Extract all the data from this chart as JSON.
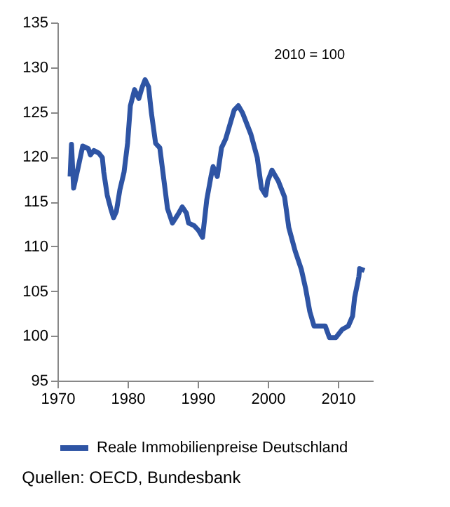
{
  "chart_data": {
    "type": "line",
    "x": [
      1971.8,
      1972.0,
      1972.3,
      1972.9,
      1973.6,
      1974.4,
      1974.7,
      1975.2,
      1975.9,
      1976.4,
      1976.6,
      1977.1,
      1977.6,
      1978.0,
      1978.4,
      1978.9,
      1979.5,
      1980.0,
      1980.4,
      1981.0,
      1981.6,
      1982.1,
      1982.5,
      1983.0,
      1983.4,
      1984.0,
      1984.6,
      1985.2,
      1985.7,
      1986.4,
      1987.3,
      1987.8,
      1988.4,
      1988.7,
      1989.5,
      1990.1,
      1990.7,
      1991.3,
      1991.9,
      1992.2,
      1992.8,
      1993.4,
      1994.0,
      1995.2,
      1995.8,
      1996.4,
      1997.6,
      1998.5,
      1999.1,
      1999.7,
      2000.0,
      2000.6,
      2001.5,
      2002.4,
      2003.0,
      2003.9,
      2004.8,
      2005.4,
      2006.0,
      2006.6,
      2008.2,
      2008.8,
      2009.7,
      2010.6,
      2011.5,
      2012.1,
      2012.4,
      2013.0,
      2013.1,
      2013.8
    ],
    "series": [
      {
        "name": "Reale Immobilienpreise Deutschland",
        "color": "#2e54a4",
        "values": [
          117.8,
          121.4,
          116.5,
          118.6,
          121.2,
          120.9,
          120.2,
          120.7,
          120.4,
          119.9,
          118.3,
          115.7,
          114.2,
          113.2,
          113.9,
          116.3,
          118.3,
          121.5,
          125.7,
          127.5,
          126.5,
          127.8,
          128.6,
          127.8,
          124.9,
          121.5,
          121.0,
          117.3,
          114.2,
          112.6,
          113.7,
          114.4,
          113.7,
          112.6,
          112.3,
          111.8,
          111.0,
          115.2,
          117.8,
          118.9,
          117.8,
          121.0,
          122.0,
          125.2,
          125.7,
          124.9,
          122.5,
          119.9,
          116.5,
          115.7,
          117.3,
          118.5,
          117.3,
          115.5,
          112.1,
          109.5,
          107.4,
          105.3,
          102.7,
          101.1,
          101.1,
          99.8,
          99.8,
          100.7,
          101.1,
          102.2,
          104.3,
          106.6,
          107.5,
          107.3
        ]
      }
    ],
    "xlim": [
      1970,
      2015
    ],
    "xticks": [
      1970,
      1980,
      1990,
      2000,
      2010
    ],
    "ylim": [
      95,
      135
    ],
    "yticks": [
      95,
      100,
      105,
      110,
      115,
      120,
      125,
      130,
      135
    ],
    "grid": false,
    "legend": "bottom",
    "marker": "none",
    "line_style": "solid",
    "annotations": [
      "2010 = 100",
      "Quellen: OECD, Bundesbank"
    ]
  }
}
